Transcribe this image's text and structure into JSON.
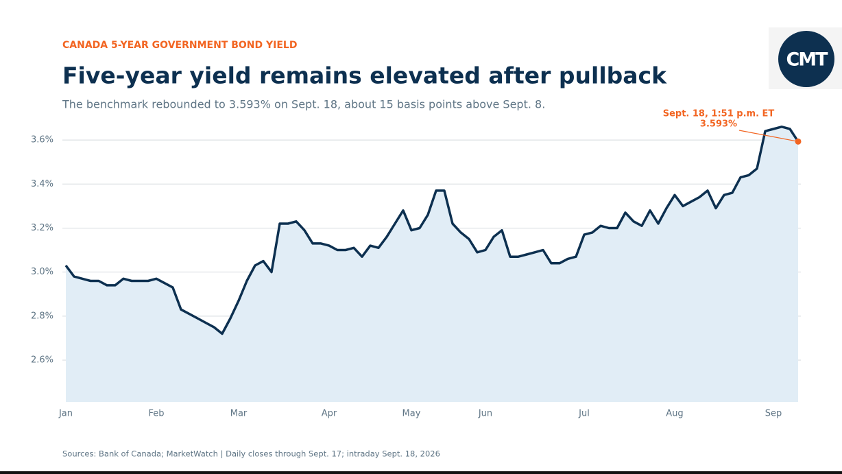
{
  "logo": "CMT",
  "chart_data": {
    "type": "line",
    "kicker": "CANADA 5-YEAR GOVERNMENT BOND YIELD",
    "title": "Five-year yield remains elevated after pullback",
    "subtitle": "The benchmark rebounded to 3.593% on Sept. 18, about 15 basis points above Sept. 8.",
    "source": "Sources: Bank of Canada; MarketWatch  |  Daily closes through Sept. 17; intraday Sept. 18, 2026",
    "categories": [
      "Jan",
      null,
      null,
      null,
      null,
      null,
      null,
      null,
      null,
      null,
      null,
      "Feb",
      null,
      null,
      null,
      null,
      null,
      null,
      null,
      null,
      null,
      "Mar",
      null,
      null,
      null,
      null,
      null,
      null,
      null,
      null,
      null,
      null,
      "Apr",
      null,
      null,
      null,
      null,
      null,
      null,
      null,
      null,
      null,
      "May",
      null,
      null,
      null,
      null,
      null,
      null,
      null,
      null,
      "Jun",
      null,
      null,
      null,
      null,
      null,
      null,
      null,
      null,
      null,
      null,
      null,
      "Jul",
      null,
      null,
      null,
      null,
      null,
      null,
      null,
      null,
      null,
      null,
      "Aug",
      null,
      null,
      null,
      null,
      null,
      null,
      null,
      null,
      null,
      null,
      null,
      "Sep",
      null,
      null,
      null
    ],
    "values": [
      3.03,
      2.98,
      2.97,
      2.96,
      2.96,
      2.94,
      2.94,
      2.97,
      2.96,
      2.96,
      2.96,
      2.97,
      2.95,
      2.93,
      2.83,
      2.81,
      2.79,
      2.77,
      2.75,
      2.72,
      2.79,
      2.87,
      2.96,
      3.03,
      3.05,
      3.0,
      3.22,
      3.22,
      3.23,
      3.19,
      3.13,
      3.13,
      3.12,
      3.1,
      3.1,
      3.11,
      3.07,
      3.12,
      3.11,
      3.16,
      3.22,
      3.28,
      3.19,
      3.2,
      3.26,
      3.37,
      3.37,
      3.22,
      3.18,
      3.15,
      3.09,
      3.1,
      3.16,
      3.19,
      3.07,
      3.07,
      3.08,
      3.09,
      3.1,
      3.04,
      3.04,
      3.06,
      3.07,
      3.17,
      3.18,
      3.21,
      3.2,
      3.2,
      3.27,
      3.23,
      3.21,
      3.28,
      3.22,
      3.29,
      3.35,
      3.3,
      3.32,
      3.34,
      3.37,
      3.29,
      3.35,
      3.36,
      3.43,
      3.44,
      3.47,
      3.64,
      3.65,
      3.66,
      3.65,
      3.593
    ],
    "color": "#0d3050",
    "area_color": "#e1edf6",
    "annotation": {
      "label": "Sept. 18, 1:51 p.m. ET",
      "value_label": "3.593%",
      "color": "#f26522"
    },
    "ylim": [
      2.41,
      3.68
    ],
    "yticks": [
      {
        "value": 2.6,
        "label": "2.6%"
      },
      {
        "value": 2.8,
        "label": "2.8%"
      },
      {
        "value": 3.0,
        "label": "3.0%"
      },
      {
        "value": 3.2,
        "label": "3.2%"
      },
      {
        "value": 3.4,
        "label": "3.4%"
      },
      {
        "value": 3.6,
        "label": "3.6%"
      }
    ],
    "grid": true
  }
}
